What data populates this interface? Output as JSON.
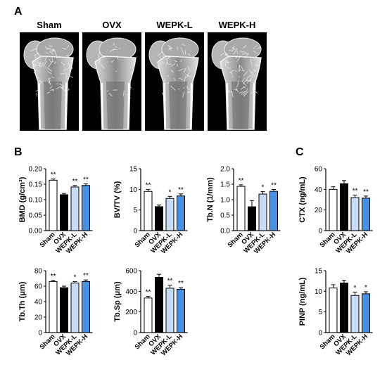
{
  "panels": {
    "a": "A",
    "b": "B",
    "c": "C"
  },
  "ct_images": [
    {
      "label": "Sham",
      "density": "high"
    },
    {
      "label": "OVX",
      "density": "low"
    },
    {
      "label": "WEPK-L",
      "density": "medium"
    },
    {
      "label": "WEPK-H",
      "density": "high"
    }
  ],
  "colors": {
    "Sham": "#ffffff",
    "OVX": "#000000",
    "WEPK-L": "#c6dcf5",
    "WEPK-H": "#4a90e2"
  },
  "chart_data": [
    {
      "id": "bmd",
      "type": "bar",
      "ylabel": "BMD (g/cm³)",
      "ylim": [
        0,
        0.2
      ],
      "yticks": [
        0.0,
        0.05,
        0.1,
        0.15,
        0.2
      ],
      "ytick_labels": [
        "0.00",
        "0.05",
        "0.10",
        "0.15",
        "0.20"
      ],
      "categories": [
        "Sham",
        "OVX",
        "WEPK-L",
        "WEPK-H"
      ],
      "values": [
        0.163,
        0.116,
        0.141,
        0.146
      ],
      "errors": [
        0.004,
        0.004,
        0.005,
        0.005
      ],
      "annotations": [
        "**",
        "",
        "**",
        "**"
      ]
    },
    {
      "id": "bvtv",
      "type": "bar",
      "ylabel": "BV/TV (%)",
      "ylim": [
        0,
        15
      ],
      "yticks": [
        0,
        5,
        10,
        15
      ],
      "ytick_labels": [
        "0",
        "5",
        "10",
        "15"
      ],
      "categories": [
        "Sham",
        "OVX",
        "WEPK-L",
        "WEPK-H"
      ],
      "values": [
        9.5,
        5.8,
        7.8,
        8.4
      ],
      "errors": [
        0.5,
        0.4,
        0.5,
        0.5
      ],
      "annotations": [
        "**",
        "",
        "*",
        "**"
      ]
    },
    {
      "id": "tbn",
      "type": "bar",
      "ylabel": "Tb.N (1/mm)",
      "ylim": [
        0,
        2.0
      ],
      "yticks": [
        0.0,
        0.5,
        1.0,
        1.5,
        2.0
      ],
      "ytick_labels": [
        "0.0",
        "0.5",
        "1.0",
        "1.5",
        "2.0"
      ],
      "categories": [
        "Sham",
        "OVX",
        "WEPK-L",
        "WEPK-H"
      ],
      "values": [
        1.43,
        0.77,
        1.18,
        1.27
      ],
      "errors": [
        0.05,
        0.2,
        0.08,
        0.06
      ],
      "annotations": [
        "**",
        "",
        "*",
        "**"
      ]
    },
    {
      "id": "tbth",
      "type": "bar",
      "ylabel": "Tb.Th (μm)",
      "ylim": [
        0,
        80
      ],
      "yticks": [
        0,
        20,
        40,
        60,
        80
      ],
      "ytick_labels": [
        "0",
        "20",
        "40",
        "60",
        "80"
      ],
      "categories": [
        "Sham",
        "OVX",
        "WEPK-L",
        "WEPK-H"
      ],
      "values": [
        66,
        58,
        64,
        66
      ],
      "errors": [
        1.5,
        2,
        2,
        2
      ],
      "annotations": [
        "**",
        "",
        "*",
        "**"
      ]
    },
    {
      "id": "tbsp",
      "type": "bar",
      "ylabel": "Tb.Sp (μm)",
      "ylim": [
        0,
        600
      ],
      "yticks": [
        0,
        200,
        400,
        600
      ],
      "ytick_labels": [
        "0",
        "200",
        "400",
        "600"
      ],
      "categories": [
        "Sham",
        "OVX",
        "WEPK-L",
        "WEPK-H"
      ],
      "values": [
        335,
        535,
        430,
        420
      ],
      "errors": [
        15,
        30,
        30,
        15
      ],
      "annotations": [
        "**",
        "",
        "**",
        "**"
      ]
    },
    {
      "id": "ctx",
      "type": "bar",
      "ylabel": "CTX (ng/mL)",
      "ylim": [
        0,
        60
      ],
      "yticks": [
        0,
        20,
        40,
        60
      ],
      "ytick_labels": [
        "0",
        "20",
        "40",
        "60"
      ],
      "categories": [
        "Sham",
        "OVX",
        "WEPK-L",
        "WEPK-H"
      ],
      "values": [
        40,
        45.5,
        32,
        31.5
      ],
      "errors": [
        2.5,
        3,
        2.5,
        2
      ],
      "annotations": [
        "",
        "",
        "**",
        "**"
      ]
    },
    {
      "id": "pinp",
      "type": "bar",
      "ylabel": "PINP (ng/mL)",
      "ylim": [
        0,
        15
      ],
      "yticks": [
        0,
        5,
        10,
        15
      ],
      "ytick_labels": [
        "0",
        "5",
        "10",
        "15"
      ],
      "categories": [
        "Sham",
        "OVX",
        "WEPK-L",
        "WEPK-H"
      ],
      "values": [
        10.8,
        12,
        9,
        9.4
      ],
      "errors": [
        0.8,
        0.7,
        0.8,
        0.5
      ],
      "annotations": [
        "",
        "",
        "*",
        "*"
      ]
    }
  ]
}
